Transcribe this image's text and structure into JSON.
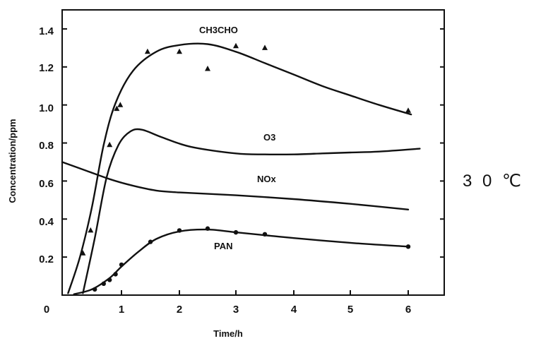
{
  "chart_data": {
    "type": "line",
    "xlabel": "Time/h",
    "ylabel": "Concentration/ppm",
    "xlim": [
      0,
      6.6
    ],
    "ylim": [
      0,
      1.5
    ],
    "x_ticks": [
      "0",
      "1",
      "2",
      "3",
      "4",
      "5",
      "6"
    ],
    "y_ticks": [
      "0.2",
      "0.4",
      "0.6",
      "0.8",
      "1.0",
      "1.2",
      "1.4"
    ],
    "grid": false,
    "series": [
      {
        "name": "CH3CHO",
        "marker": "triangle",
        "values": [
          [
            0.1,
            0.01
          ],
          [
            0.3,
            0.2
          ],
          [
            0.5,
            0.46
          ],
          [
            0.7,
            0.79
          ],
          [
            0.9,
            1.01
          ],
          [
            1.2,
            1.18
          ],
          [
            1.6,
            1.28
          ],
          [
            2.0,
            1.315
          ],
          [
            2.5,
            1.32
          ],
          [
            3.0,
            1.28
          ],
          [
            3.5,
            1.22
          ],
          [
            4.0,
            1.16
          ],
          [
            4.5,
            1.1
          ],
          [
            5.0,
            1.05
          ],
          [
            5.5,
            1.0
          ],
          [
            6.05,
            0.95
          ]
        ],
        "points": [
          [
            0.35,
            0.22
          ],
          [
            0.48,
            0.34
          ],
          [
            0.8,
            0.79
          ],
          [
            0.92,
            0.98
          ],
          [
            0.98,
            1.0
          ],
          [
            1.45,
            1.28
          ],
          [
            2.0,
            1.28
          ],
          [
            2.5,
            1.19
          ],
          [
            3.0,
            1.31
          ],
          [
            3.5,
            1.3
          ],
          [
            6.0,
            0.97
          ]
        ]
      },
      {
        "name": "O3",
        "marker": "none",
        "values": [
          [
            0.35,
            0.01
          ],
          [
            0.55,
            0.3
          ],
          [
            0.75,
            0.62
          ],
          [
            0.95,
            0.79
          ],
          [
            1.15,
            0.86
          ],
          [
            1.35,
            0.87
          ],
          [
            1.7,
            0.83
          ],
          [
            2.2,
            0.78
          ],
          [
            3.0,
            0.745
          ],
          [
            3.5,
            0.74
          ],
          [
            4.0,
            0.74
          ],
          [
            4.5,
            0.745
          ],
          [
            5.0,
            0.75
          ],
          [
            5.5,
            0.755
          ],
          [
            6.2,
            0.77
          ]
        ],
        "points": []
      },
      {
        "name": "NOx",
        "marker": "none",
        "values": [
          [
            0.0,
            0.7
          ],
          [
            0.4,
            0.655
          ],
          [
            0.8,
            0.61
          ],
          [
            1.2,
            0.575
          ],
          [
            1.6,
            0.55
          ],
          [
            2.0,
            0.54
          ],
          [
            3.0,
            0.525
          ],
          [
            4.0,
            0.505
          ],
          [
            5.0,
            0.48
          ],
          [
            6.0,
            0.45
          ]
        ],
        "points": []
      },
      {
        "name": "PAN",
        "marker": "circle",
        "values": [
          [
            0.2,
            0.005
          ],
          [
            0.5,
            0.03
          ],
          [
            0.8,
            0.09
          ],
          [
            1.0,
            0.15
          ],
          [
            1.3,
            0.23
          ],
          [
            1.6,
            0.295
          ],
          [
            2.0,
            0.335
          ],
          [
            2.5,
            0.345
          ],
          [
            3.0,
            0.33
          ],
          [
            3.5,
            0.315
          ],
          [
            4.0,
            0.3
          ],
          [
            5.0,
            0.275
          ],
          [
            6.0,
            0.255
          ]
        ],
        "points": [
          [
            0.55,
            0.03
          ],
          [
            0.7,
            0.06
          ],
          [
            0.8,
            0.08
          ],
          [
            0.9,
            0.11
          ],
          [
            1.0,
            0.16
          ],
          [
            1.5,
            0.28
          ],
          [
            2.0,
            0.34
          ],
          [
            2.5,
            0.35
          ],
          [
            3.0,
            0.33
          ],
          [
            3.5,
            0.32
          ],
          [
            6.0,
            0.255
          ]
        ]
      }
    ],
    "annotations": {
      "series_labels": [
        "CH3CHO",
        "O3",
        "NOx",
        "PAN"
      ]
    }
  },
  "side_label": "3 0 ℃"
}
